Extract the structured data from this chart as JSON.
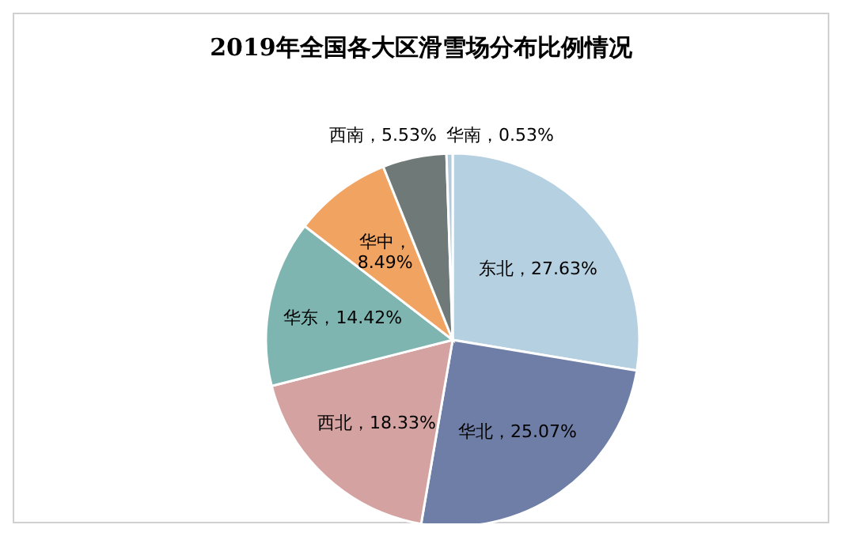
{
  "chart_data": {
    "type": "pie",
    "title": "2019年全国各大区滑雪场分布比例情况",
    "categories": [
      "东北",
      "华北",
      "西北",
      "华东",
      "华中",
      "西南",
      "华南"
    ],
    "values": [
      27.63,
      25.07,
      18.33,
      14.42,
      8.49,
      5.53,
      0.53
    ],
    "colors": [
      "#b5d0e1",
      "#6e7ea6",
      "#d4a3a1",
      "#7fb5b1",
      "#f1a362",
      "#6f7a78",
      "#b3cadb"
    ],
    "value_labels": [
      "，27.63%",
      "，25.07%",
      "，18.33%",
      "，14.42%",
      "，8.49%",
      "，5.53%",
      "，0.53%"
    ]
  }
}
